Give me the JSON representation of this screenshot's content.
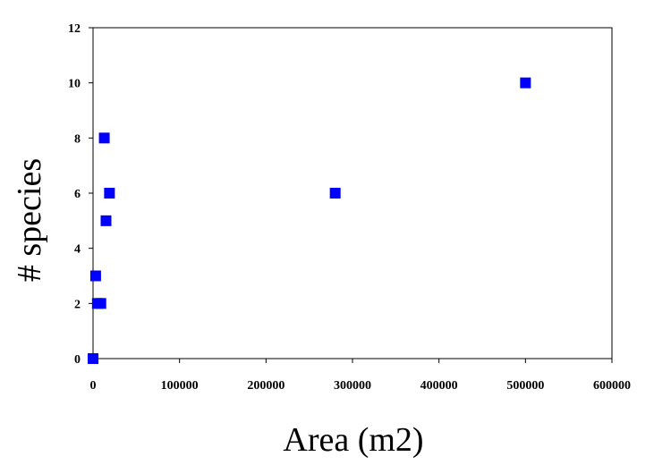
{
  "chart_data": {
    "type": "scatter",
    "title": "",
    "xlabel": "Area (m2)",
    "ylabel": "# species",
    "xlim": [
      0,
      600000
    ],
    "ylim": [
      0,
      12
    ],
    "x_ticks": [
      0,
      100000,
      200000,
      300000,
      400000,
      500000,
      600000
    ],
    "y_ticks": [
      0,
      2,
      4,
      6,
      8,
      10,
      12
    ],
    "x_tick_labels": [
      "0",
      "100000",
      "200000",
      "300000",
      "400000",
      "500000",
      "600000"
    ],
    "y_tick_labels": [
      "0",
      "2",
      "4",
      "6",
      "8",
      "10",
      "12"
    ],
    "grid": false,
    "legend": "none",
    "marker": "square",
    "series": [
      {
        "color": "#0000ff",
        "points": [
          {
            "x": 0,
            "y": 0
          },
          {
            "x": 3000,
            "y": 3
          },
          {
            "x": 5000,
            "y": 2
          },
          {
            "x": 9000,
            "y": 2
          },
          {
            "x": 13000,
            "y": 8
          },
          {
            "x": 15000,
            "y": 5
          },
          {
            "x": 19000,
            "y": 6
          },
          {
            "x": 280000,
            "y": 6
          },
          {
            "x": 500000,
            "y": 10
          }
        ]
      }
    ]
  }
}
